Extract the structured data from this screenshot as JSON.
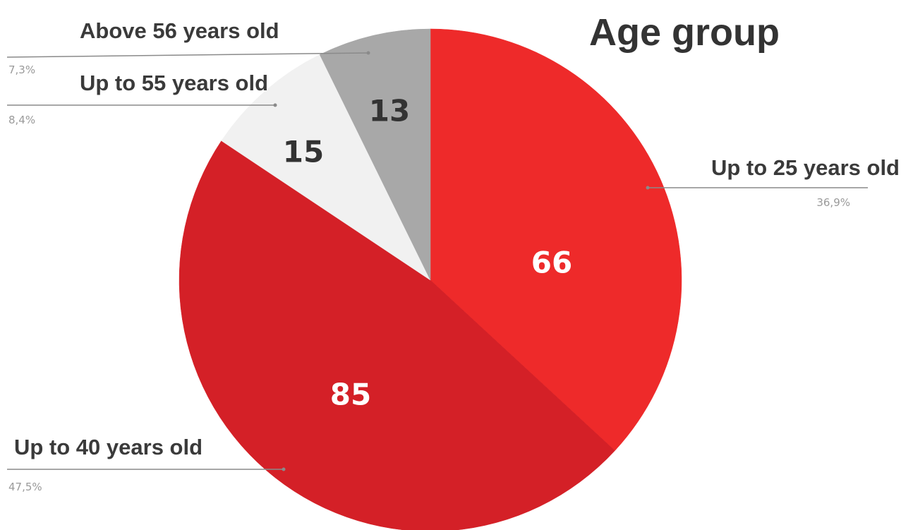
{
  "chart_data": {
    "type": "pie",
    "title": "Age group",
    "slices": [
      {
        "label": "Up to 25 years old",
        "value": 66,
        "percent_label": "36,9%",
        "color": "#ee2a2a",
        "value_color": "#ffffff"
      },
      {
        "label": "Up to 40 years old",
        "value": 85,
        "percent_label": "47,5%",
        "color": "#d42027",
        "value_color": "#ffffff"
      },
      {
        "label": "Up to 55 years old",
        "value": 15,
        "percent_label": "8,4%",
        "color": "#f1f1f1",
        "value_color": "#333333"
      },
      {
        "label": "Above 56 years old",
        "value": 13,
        "percent_label": "7,3%",
        "color": "#a8a8a8",
        "value_color": "#333333"
      }
    ],
    "start_angle_deg": 0,
    "direction": "clockwise"
  }
}
